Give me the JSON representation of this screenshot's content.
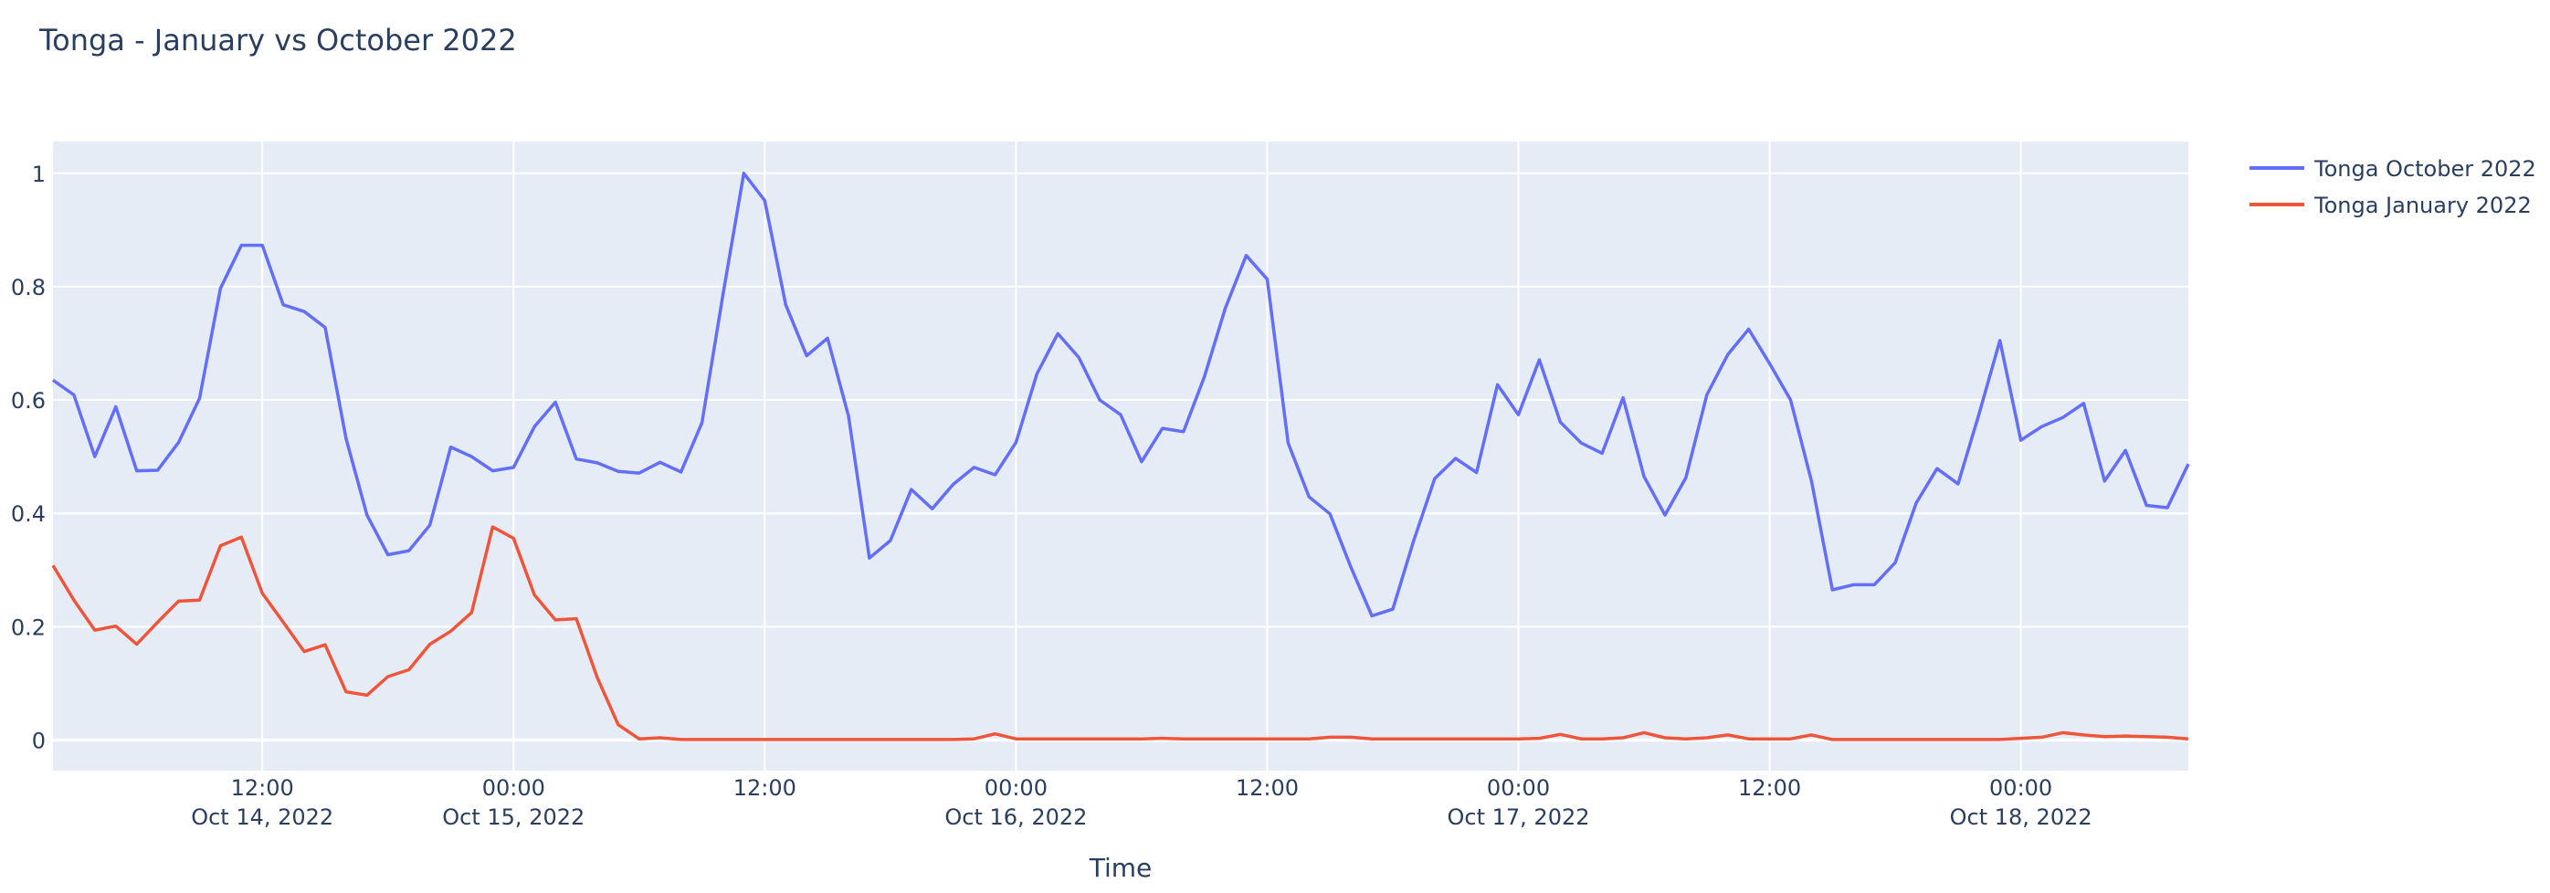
{
  "chart_data": {
    "type": "line",
    "title": "Tonga - January vs October 2022",
    "xlabel": "Time",
    "ylabel": "",
    "ylim": [
      -0.054,
      1.056
    ],
    "xlim": [
      "2022-10-14 02:00",
      "2022-10-18 08:00"
    ],
    "grid": true,
    "legend_position": "top-right",
    "background_color": "#e5ecf6",
    "y_ticks": [
      {
        "value": 0,
        "label": "0"
      },
      {
        "value": 0.2,
        "label": "0.2"
      },
      {
        "value": 0.4,
        "label": "0.4"
      },
      {
        "value": 0.6,
        "label": "0.6"
      },
      {
        "value": 0.8,
        "label": "0.8"
      },
      {
        "value": 1,
        "label": "1"
      }
    ],
    "x_ticks": [
      {
        "time": "2022-10-14 12:00",
        "label": "12:00",
        "date": "Oct 14, 2022"
      },
      {
        "time": "2022-10-15 00:00",
        "label": "00:00",
        "date": "Oct 15, 2022"
      },
      {
        "time": "2022-10-15 12:00",
        "label": "12:00",
        "date": ""
      },
      {
        "time": "2022-10-16 00:00",
        "label": "00:00",
        "date": "Oct 16, 2022"
      },
      {
        "time": "2022-10-16 12:00",
        "label": "12:00",
        "date": ""
      },
      {
        "time": "2022-10-17 00:00",
        "label": "00:00",
        "date": "Oct 17, 2022"
      },
      {
        "time": "2022-10-17 12:00",
        "label": "12:00",
        "date": ""
      },
      {
        "time": "2022-10-18 00:00",
        "label": "00:00",
        "date": "Oct 18, 2022"
      }
    ],
    "x": [
      "2022-10-14 02:00",
      "2022-10-14 03:00",
      "2022-10-14 04:00",
      "2022-10-14 05:00",
      "2022-10-14 06:00",
      "2022-10-14 07:00",
      "2022-10-14 08:00",
      "2022-10-14 09:00",
      "2022-10-14 10:00",
      "2022-10-14 11:00",
      "2022-10-14 12:00",
      "2022-10-14 13:00",
      "2022-10-14 14:00",
      "2022-10-14 15:00",
      "2022-10-14 16:00",
      "2022-10-14 17:00",
      "2022-10-14 18:00",
      "2022-10-14 19:00",
      "2022-10-14 20:00",
      "2022-10-14 21:00",
      "2022-10-14 22:00",
      "2022-10-14 23:00",
      "2022-10-15 00:00",
      "2022-10-15 01:00",
      "2022-10-15 02:00",
      "2022-10-15 03:00",
      "2022-10-15 04:00",
      "2022-10-15 05:00",
      "2022-10-15 06:00",
      "2022-10-15 07:00",
      "2022-10-15 08:00",
      "2022-10-15 09:00",
      "2022-10-15 10:00",
      "2022-10-15 11:00",
      "2022-10-15 12:00",
      "2022-10-15 13:00",
      "2022-10-15 14:00",
      "2022-10-15 15:00",
      "2022-10-15 16:00",
      "2022-10-15 17:00",
      "2022-10-15 18:00",
      "2022-10-15 19:00",
      "2022-10-15 20:00",
      "2022-10-15 21:00",
      "2022-10-15 22:00",
      "2022-10-15 23:00",
      "2022-10-16 00:00",
      "2022-10-16 01:00",
      "2022-10-16 02:00",
      "2022-10-16 03:00",
      "2022-10-16 04:00",
      "2022-10-16 05:00",
      "2022-10-16 06:00",
      "2022-10-16 07:00",
      "2022-10-16 08:00",
      "2022-10-16 09:00",
      "2022-10-16 10:00",
      "2022-10-16 11:00",
      "2022-10-16 12:00",
      "2022-10-16 13:00",
      "2022-10-16 14:00",
      "2022-10-16 15:00",
      "2022-10-16 16:00",
      "2022-10-16 17:00",
      "2022-10-16 18:00",
      "2022-10-16 19:00",
      "2022-10-16 20:00",
      "2022-10-16 21:00",
      "2022-10-16 22:00",
      "2022-10-16 23:00",
      "2022-10-17 00:00",
      "2022-10-17 01:00",
      "2022-10-17 02:00",
      "2022-10-17 03:00",
      "2022-10-17 04:00",
      "2022-10-17 05:00",
      "2022-10-17 06:00",
      "2022-10-17 07:00",
      "2022-10-17 08:00",
      "2022-10-17 09:00",
      "2022-10-17 10:00",
      "2022-10-17 11:00",
      "2022-10-17 12:00",
      "2022-10-17 13:00",
      "2022-10-17 14:00",
      "2022-10-17 15:00",
      "2022-10-17 16:00",
      "2022-10-17 17:00",
      "2022-10-17 18:00",
      "2022-10-17 19:00",
      "2022-10-17 20:00",
      "2022-10-17 21:00",
      "2022-10-17 22:00",
      "2022-10-17 23:00",
      "2022-10-18 00:00",
      "2022-10-18 01:00",
      "2022-10-18 02:00",
      "2022-10-18 03:00",
      "2022-10-18 04:00",
      "2022-10-18 05:00",
      "2022-10-18 06:00",
      "2022-10-18 07:00",
      "2022-10-18 08:00"
    ],
    "series": [
      {
        "name": "Tonga October 2022",
        "color": "#636efa",
        "values": [
          0.635,
          0.609,
          0.5,
          0.588,
          0.475,
          0.476,
          0.525,
          0.603,
          0.797,
          0.873,
          0.873,
          0.768,
          0.756,
          0.728,
          0.532,
          0.397,
          0.327,
          0.334,
          0.379,
          0.517,
          0.5,
          0.475,
          0.481,
          0.553,
          0.596,
          0.496,
          0.489,
          0.474,
          0.471,
          0.49,
          0.473,
          0.56,
          0.785,
          1.0,
          0.952,
          0.768,
          0.678,
          0.709,
          0.572,
          0.321,
          0.352,
          0.442,
          0.408,
          0.451,
          0.481,
          0.468,
          0.525,
          0.646,
          0.717,
          0.675,
          0.6,
          0.574,
          0.491,
          0.55,
          0.544,
          0.641,
          0.762,
          0.855,
          0.813,
          0.524,
          0.429,
          0.399,
          0.305,
          0.219,
          0.231,
          0.352,
          0.461,
          0.497,
          0.472,
          0.627,
          0.574,
          0.671,
          0.561,
          0.524,
          0.506,
          0.604,
          0.465,
          0.397,
          0.463,
          0.609,
          0.68,
          0.725,
          0.664,
          0.6,
          0.457,
          0.265,
          0.274,
          0.274,
          0.313,
          0.418,
          0.479,
          0.452,
          0.575,
          0.705,
          0.529,
          0.553,
          0.569,
          0.594,
          0.457,
          0.511,
          0.414,
          0.41,
          0.487
        ]
      },
      {
        "name": "Tonga January 2022",
        "color": "#EF553B",
        "values": [
          0.308,
          0.247,
          0.194,
          0.201,
          0.169,
          0.208,
          0.245,
          0.247,
          0.343,
          0.358,
          0.259,
          0.208,
          0.156,
          0.168,
          0.085,
          0.079,
          0.112,
          0.124,
          0.169,
          0.192,
          0.225,
          0.376,
          0.356,
          0.256,
          0.212,
          0.214,
          0.11,
          0.027,
          0.002,
          0.004,
          0.001,
          0.001,
          0.001,
          0.001,
          0.001,
          0.001,
          0.001,
          0.001,
          0.001,
          0.001,
          0.001,
          0.001,
          0.001,
          0.001,
          0.002,
          0.011,
          0.002,
          0.002,
          0.002,
          0.002,
          0.002,
          0.002,
          0.002,
          0.003,
          0.002,
          0.002,
          0.002,
          0.002,
          0.002,
          0.002,
          0.002,
          0.005,
          0.005,
          0.002,
          0.002,
          0.002,
          0.002,
          0.002,
          0.002,
          0.002,
          0.002,
          0.003,
          0.01,
          0.002,
          0.002,
          0.004,
          0.013,
          0.004,
          0.002,
          0.004,
          0.009,
          0.002,
          0.002,
          0.002,
          0.009,
          0.001,
          0.001,
          0.001,
          0.001,
          0.001,
          0.001,
          0.001,
          0.001,
          0.001,
          0.003,
          0.005,
          0.013,
          0.009,
          0.006,
          0.007,
          0.006,
          0.005,
          0.002
        ]
      }
    ]
  }
}
